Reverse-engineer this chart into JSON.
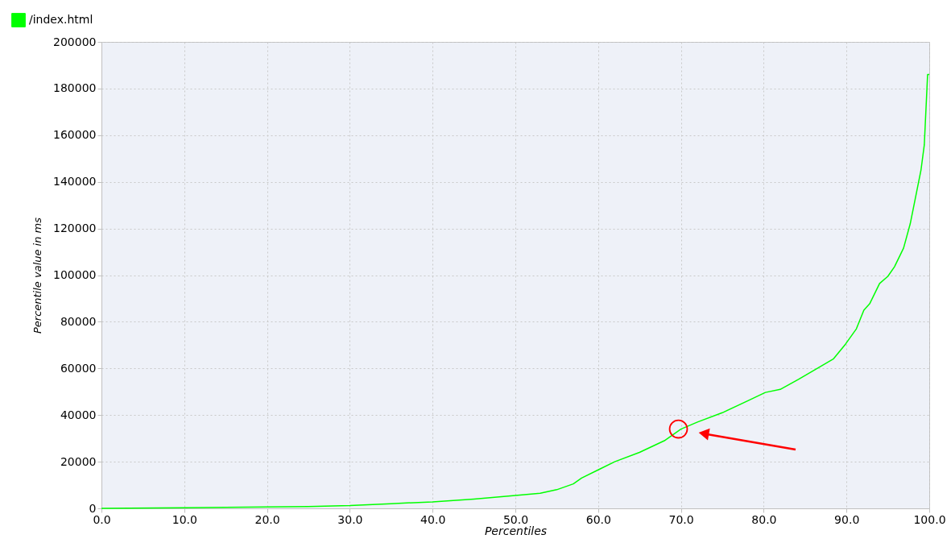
{
  "chart_data": {
    "type": "line",
    "xlabel": "Percentiles",
    "ylabel": "Percentile value in ms",
    "xlim": [
      0,
      100
    ],
    "ylim": [
      0,
      200000
    ],
    "xticks": [
      {
        "value": 0,
        "label": "0.0"
      },
      {
        "value": 10,
        "label": "10.0"
      },
      {
        "value": 20,
        "label": "20.0"
      },
      {
        "value": 30,
        "label": "30.0"
      },
      {
        "value": 40,
        "label": "40.0"
      },
      {
        "value": 50,
        "label": "50.0"
      },
      {
        "value": 60,
        "label": "60.0"
      },
      {
        "value": 70,
        "label": "70.0"
      },
      {
        "value": 80,
        "label": "80.0"
      },
      {
        "value": 90,
        "label": "90.0"
      },
      {
        "value": 100,
        "label": "100.0"
      }
    ],
    "yticks": [
      0,
      20000,
      40000,
      60000,
      80000,
      100000,
      120000,
      140000,
      160000,
      180000,
      200000
    ],
    "grid": true,
    "legend": "top left",
    "marker": "none",
    "line_style": "solid",
    "series": [
      {
        "name": "/index.html",
        "color": "#00ff00",
        "x": [
          0,
          10,
          20,
          25,
          30,
          35,
          40,
          45,
          50,
          53,
          55,
          57,
          58,
          60,
          62,
          65,
          68,
          70,
          72,
          75,
          78,
          80.2,
          82,
          84.2,
          86.7,
          88.4,
          89.9,
          91.2,
          92.1,
          92.8,
          94.0,
          95.0,
          95.8,
          96.9,
          97.7,
          98.3,
          99.0,
          99.4,
          99.8,
          100
        ],
        "values": [
          0,
          300,
          600,
          800,
          1200,
          2000,
          2800,
          4000,
          5500,
          6500,
          8000,
          10500,
          13000,
          16500,
          20000,
          24000,
          29000,
          34000,
          37000,
          41000,
          46000,
          49700,
          51000,
          55300,
          60500,
          64000,
          70500,
          77000,
          85000,
          87700,
          96400,
          99500,
          103600,
          111600,
          122000,
          132600,
          145000,
          155800,
          186000,
          186000
        ]
      },
      {
        "type": "scatter",
        "marker": "circle",
        "color": "#ff0000",
        "x": [
          69.7
        ],
        "values": [
          34000
        ]
      }
    ]
  }
}
